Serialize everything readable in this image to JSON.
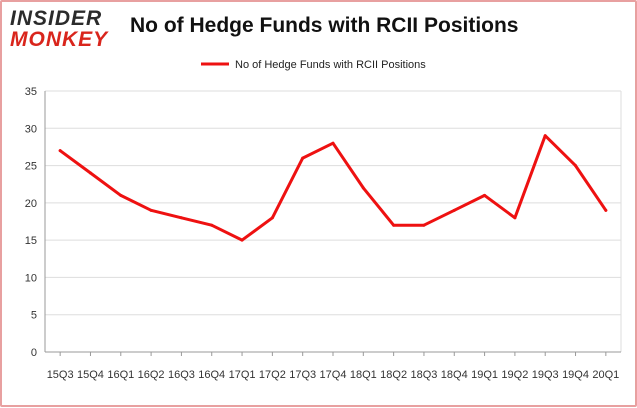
{
  "logo": {
    "line1": "INSIDER",
    "line2": "MONKEY"
  },
  "colors": {
    "series": "#ee1111",
    "grid": "#dddddd",
    "logo_red": "#d9251c"
  },
  "chart_data": {
    "type": "line",
    "title": "No of Hedge Funds with RCII Positions",
    "xlabel": "",
    "ylabel": "",
    "ylim": [
      0,
      35
    ],
    "yticks": [
      0,
      5,
      10,
      15,
      20,
      25,
      30,
      35
    ],
    "grid": true,
    "legend_placement": "top",
    "categories": [
      "15Q3",
      "15Q4",
      "16Q1",
      "16Q2",
      "16Q3",
      "16Q4",
      "17Q1",
      "17Q2",
      "17Q3",
      "17Q4",
      "18Q1",
      "18Q2",
      "18Q3",
      "18Q4",
      "19Q1",
      "19Q2",
      "19Q3",
      "19Q4",
      "20Q1"
    ],
    "series": [
      {
        "name": "No of Hedge Funds with RCII Positions",
        "values": [
          27,
          24,
          21,
          19,
          18,
          17,
          15,
          18,
          26,
          28,
          22,
          17,
          17,
          19,
          21,
          18,
          29,
          25,
          19
        ]
      }
    ]
  }
}
